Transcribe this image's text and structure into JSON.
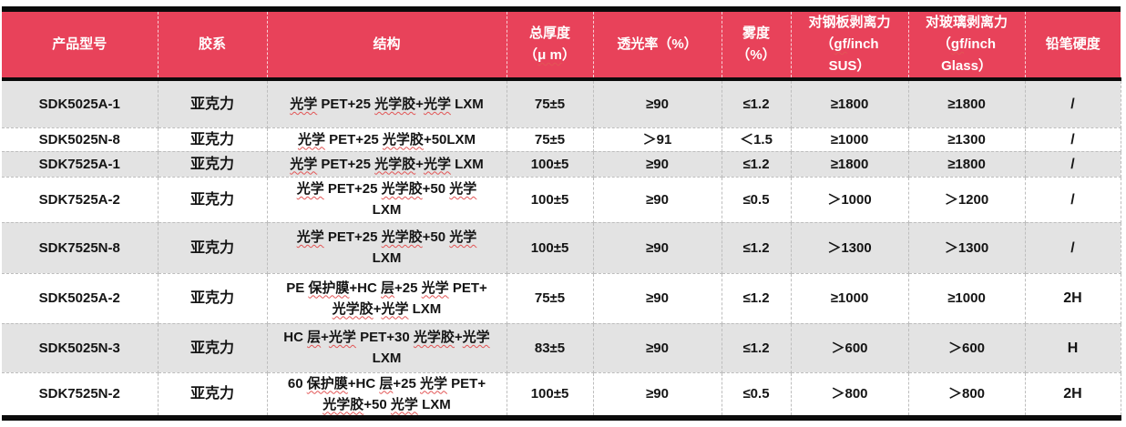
{
  "colors": {
    "header_bg": "#E8425A",
    "header_fg": "#FFFFFF",
    "row_alt": "#E3E3E3",
    "border_heavy": "#0B0B0B",
    "squiggle": "#E25555"
  },
  "table": {
    "columns": [
      {
        "key": "model",
        "label": "产品型号"
      },
      {
        "key": "adhesive",
        "label": "胶系"
      },
      {
        "key": "structure",
        "label": "结构"
      },
      {
        "key": "thickness",
        "label": "总厚度\n（μ m）",
        "squiggle": "latin"
      },
      {
        "key": "transmittance",
        "label": "透光率（%）"
      },
      {
        "key": "haze",
        "label": "雾度\n（%）"
      },
      {
        "key": "peel_steel",
        "label": "对钢板剥离力\n（gf/inch\nSUS）",
        "squiggle": "latin"
      },
      {
        "key": "peel_glass",
        "label": "对玻璃剥离力\n（gf/inch\nGlass）",
        "squiggle": "latin"
      },
      {
        "key": "hardness",
        "label": "铅笔硬度"
      }
    ],
    "rows": [
      [
        "SDK5025A-1",
        "亚克力",
        "光学 PET+25 光学胶+光学 LXM",
        "75±5",
        "≥90",
        "≤1.2",
        "≥1800",
        "≥1800",
        "/"
      ],
      [
        "SDK5025N-8",
        "亚克力",
        "光学 PET+25 光学胶+50LXM",
        "75±5",
        "＞91",
        "＜1.5",
        "≥1000",
        "≥1300",
        "/"
      ],
      [
        "SDK7525A-1",
        "亚克力",
        "光学 PET+25 光学胶+光学 LXM",
        "100±5",
        "≥90",
        "≤1.2",
        "≥1800",
        "≥1800",
        "/"
      ],
      [
        "SDK7525A-2",
        "亚克力",
        "光学 PET+25 光学胶+50 光学\nLXM",
        "100±5",
        "≥90",
        "≤0.5",
        "＞1000",
        "＞1200",
        "/"
      ],
      [
        "SDK7525N-8",
        "亚克力",
        "光学 PET+25 光学胶+50 光学\nLXM",
        "100±5",
        "≥90",
        "≤1.2",
        "＞1300",
        "＞1300",
        "/"
      ],
      [
        "SDK5025A-2",
        "亚克力",
        "PE 保护膜+HC 层+25 光学 PET+\n光学胶+光学 LXM",
        "75±5",
        "≥90",
        "≤1.2",
        "≥1000",
        "≥1000",
        "2H"
      ],
      [
        "SDK5025N-3",
        "亚克力",
        "HC 层+光学 PET+30 光学胶+光学\nLXM",
        "83±5",
        "≥90",
        "≤1.2",
        "＞600",
        "＞600",
        "H"
      ],
      [
        "SDK7525N-2",
        "亚克力",
        "60 保护膜+HC 层+25 光学 PET+\n光学胶+50 光学 LXM",
        "100±5",
        "≥90",
        "≤0.5",
        "＞800",
        "＞800",
        "2H"
      ]
    ]
  }
}
